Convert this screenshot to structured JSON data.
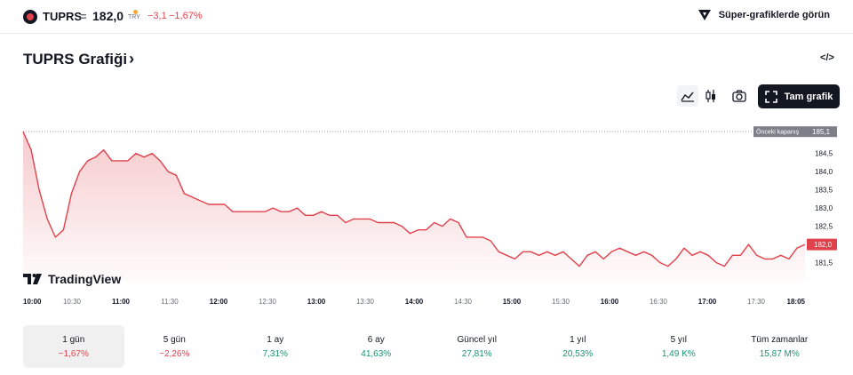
{
  "header": {
    "symbol": "TUPRS",
    "separator": "=",
    "price": "182,0",
    "currency": "TRY",
    "change": "−3,1",
    "change_pct": "−1,67%",
    "super_charts_label": "Süper-grafiklerde görün"
  },
  "title": {
    "text": "TUPRS Grafiği",
    "chevron": "›"
  },
  "toolbar": {
    "embed_label": "</>",
    "fullscreen_label": "Tam grafik"
  },
  "branding": {
    "text": "TradingView"
  },
  "colors": {
    "down": "#e0424c",
    "up": "#1a9472",
    "accent": "#131722"
  },
  "chart_data": {
    "type": "area",
    "symbol": "TUPRS",
    "currency": "TRY",
    "ylim": [
      181.0,
      185.3
    ],
    "y_ticks": [
      181.5,
      182.0,
      182.5,
      183.0,
      183.5,
      184.0,
      184.5
    ],
    "y_tick_labels": [
      "181,5",
      "182,0",
      "182,5",
      "183,0",
      "183,5",
      "184,0",
      "184,5"
    ],
    "x_tick_labels": [
      "10:00",
      "10:30",
      "11:00",
      "11:30",
      "12:00",
      "12:30",
      "13:00",
      "13:30",
      "14:00",
      "14:30",
      "15:00",
      "15:30",
      "16:00",
      "16:30",
      "17:00",
      "17:30",
      "18:05"
    ],
    "x_tick_bold": [
      true,
      false,
      true,
      false,
      true,
      false,
      true,
      false,
      true,
      false,
      true,
      false,
      true,
      false,
      true,
      false,
      true
    ],
    "previous_close": 185.1,
    "previous_close_label": "Önceki kapanış",
    "previous_close_value_label": "185,1",
    "last_value": 182.0,
    "last_value_label": "182,0",
    "series": [
      {
        "x": [
          "10:00",
          "10:05",
          "10:10",
          "10:15",
          "10:20",
          "10:25",
          "10:30",
          "10:35",
          "10:40",
          "10:45",
          "10:50",
          "10:55",
          "11:00",
          "11:05",
          "11:10",
          "11:15",
          "11:20",
          "11:25",
          "11:30",
          "11:35",
          "11:40",
          "11:45",
          "11:50",
          "11:55",
          "12:00",
          "12:05",
          "12:10",
          "12:15",
          "12:20",
          "12:25",
          "12:30",
          "12:35",
          "12:40",
          "12:45",
          "12:50",
          "12:55",
          "13:00",
          "13:05",
          "13:10",
          "13:15",
          "13:20",
          "13:25",
          "13:30",
          "13:35",
          "13:40",
          "13:45",
          "13:50",
          "13:55",
          "14:00",
          "14:05",
          "14:10",
          "14:15",
          "14:20",
          "14:25",
          "14:30",
          "14:35",
          "14:40",
          "14:45",
          "14:50",
          "14:55",
          "15:00",
          "15:05",
          "15:10",
          "15:15",
          "15:20",
          "15:25",
          "15:30",
          "15:35",
          "15:40",
          "15:45",
          "15:50",
          "15:55",
          "16:00",
          "16:05",
          "16:10",
          "16:15",
          "16:20",
          "16:25",
          "16:30",
          "16:35",
          "16:40",
          "16:45",
          "16:50",
          "16:55",
          "17:00",
          "17:05",
          "17:10",
          "17:15",
          "17:20",
          "17:25",
          "17:30",
          "17:35",
          "17:40",
          "17:45",
          "17:50",
          "17:55",
          "18:00",
          "18:05"
        ],
        "values": [
          185.1,
          184.6,
          183.5,
          182.7,
          182.2,
          182.4,
          183.4,
          184.0,
          184.3,
          184.4,
          184.6,
          184.3,
          184.3,
          184.3,
          184.5,
          184.4,
          184.5,
          184.3,
          184.0,
          183.9,
          183.4,
          183.3,
          183.2,
          183.1,
          183.1,
          183.1,
          182.9,
          182.9,
          182.9,
          182.9,
          182.9,
          183.0,
          182.9,
          182.9,
          183.0,
          182.8,
          182.8,
          182.9,
          182.8,
          182.8,
          182.6,
          182.7,
          182.7,
          182.7,
          182.6,
          182.6,
          182.6,
          182.5,
          182.3,
          182.4,
          182.4,
          182.6,
          182.5,
          182.7,
          182.6,
          182.2,
          182.2,
          182.2,
          182.1,
          181.8,
          181.7,
          181.6,
          181.8,
          181.8,
          181.7,
          181.8,
          181.7,
          181.8,
          181.6,
          181.4,
          181.7,
          181.8,
          181.6,
          181.8,
          181.9,
          181.8,
          181.7,
          181.8,
          181.7,
          181.5,
          181.4,
          181.6,
          181.9,
          181.7,
          181.8,
          181.7,
          181.5,
          181.4,
          181.7,
          181.7,
          182.0,
          181.7,
          181.6,
          181.6,
          181.7,
          181.6,
          181.9,
          182.0
        ]
      }
    ]
  },
  "periods": [
    {
      "label": "1 gün",
      "value": "−1,67%",
      "trend": "neg",
      "active": true
    },
    {
      "label": "5 gün",
      "value": "−2,26%",
      "trend": "neg",
      "active": false
    },
    {
      "label": "1 ay",
      "value": "7,31%",
      "trend": "pos",
      "active": false
    },
    {
      "label": "6 ay",
      "value": "41,63%",
      "trend": "pos",
      "active": false
    },
    {
      "label": "Güncel yıl",
      "value": "27,81%",
      "trend": "pos",
      "active": false
    },
    {
      "label": "1 yıl",
      "value": "20,53%",
      "trend": "pos",
      "active": false
    },
    {
      "label": "5 yıl",
      "value": "1,49 K%",
      "trend": "pos",
      "active": false
    },
    {
      "label": "Tüm zamanlar",
      "value": "15,87 M%",
      "trend": "pos",
      "active": false
    }
  ]
}
